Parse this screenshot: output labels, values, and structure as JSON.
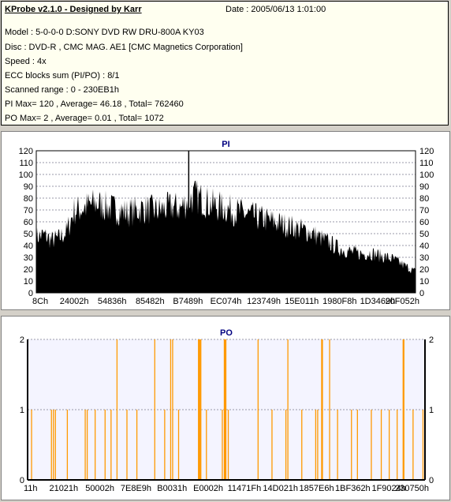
{
  "header": {
    "title": "KProbe v2.1.0 - Designed by Karr",
    "date": "Date : 2005/06/13 1:01:00",
    "lines": [
      "Model : 5-0-0-0 D:SONY    DVD RW DRU-800A  KY03",
      "Disc : DVD-R , CMC MAG. AE1 [CMC Magnetics Corporation]",
      "Speed : 4x",
      "ECC blocks sum (PI/PO) : 8/1",
      "Scanned range : 0 - 230EB1h",
      "PI Max= 120 , Average= 46.18 , Total= 762460",
      "PO Max= 2 , Average= 0.01 , Total= 1072"
    ]
  },
  "chart_data": [
    {
      "type": "area",
      "title": "PI",
      "ylim": [
        0,
        120
      ],
      "yticks": [
        0,
        10,
        20,
        30,
        40,
        50,
        60,
        70,
        80,
        90,
        100,
        110,
        120
      ],
      "xtick_labels": [
        "8Ch",
        "24002h",
        "54836h",
        "85482h",
        "B7489h",
        "EC074h",
        "123749h",
        "15E011h",
        "1980F8h",
        "1D3469h",
        "20F052h"
      ],
      "grid": true,
      "colors": {
        "fill": "#000000",
        "title": "#000080"
      },
      "envelope_points": [
        {
          "x": 0.0,
          "y": 53
        },
        {
          "x": 0.02,
          "y": 55
        },
        {
          "x": 0.04,
          "y": 50
        },
        {
          "x": 0.06,
          "y": 52
        },
        {
          "x": 0.08,
          "y": 58
        },
        {
          "x": 0.1,
          "y": 78
        },
        {
          "x": 0.12,
          "y": 80
        },
        {
          "x": 0.14,
          "y": 83
        },
        {
          "x": 0.16,
          "y": 85
        },
        {
          "x": 0.18,
          "y": 82
        },
        {
          "x": 0.2,
          "y": 80
        },
        {
          "x": 0.22,
          "y": 78
        },
        {
          "x": 0.24,
          "y": 76
        },
        {
          "x": 0.26,
          "y": 78
        },
        {
          "x": 0.28,
          "y": 80
        },
        {
          "x": 0.3,
          "y": 79
        },
        {
          "x": 0.32,
          "y": 78
        },
        {
          "x": 0.34,
          "y": 80
        },
        {
          "x": 0.36,
          "y": 82
        },
        {
          "x": 0.38,
          "y": 80
        },
        {
          "x": 0.4,
          "y": 88
        },
        {
          "x": 0.42,
          "y": 92
        },
        {
          "x": 0.44,
          "y": 88
        },
        {
          "x": 0.46,
          "y": 84
        },
        {
          "x": 0.48,
          "y": 82
        },
        {
          "x": 0.5,
          "y": 80
        },
        {
          "x": 0.52,
          "y": 78
        },
        {
          "x": 0.54,
          "y": 76
        },
        {
          "x": 0.56,
          "y": 74
        },
        {
          "x": 0.58,
          "y": 72
        },
        {
          "x": 0.6,
          "y": 70
        },
        {
          "x": 0.62,
          "y": 68
        },
        {
          "x": 0.64,
          "y": 66
        },
        {
          "x": 0.66,
          "y": 64
        },
        {
          "x": 0.68,
          "y": 62
        },
        {
          "x": 0.7,
          "y": 60
        },
        {
          "x": 0.72,
          "y": 58
        },
        {
          "x": 0.74,
          "y": 54
        },
        {
          "x": 0.76,
          "y": 50
        },
        {
          "x": 0.78,
          "y": 46
        },
        {
          "x": 0.8,
          "y": 42
        },
        {
          "x": 0.82,
          "y": 40
        },
        {
          "x": 0.84,
          "y": 38
        },
        {
          "x": 0.86,
          "y": 37
        },
        {
          "x": 0.88,
          "y": 38
        },
        {
          "x": 0.9,
          "y": 36
        },
        {
          "x": 0.92,
          "y": 34
        },
        {
          "x": 0.94,
          "y": 32
        },
        {
          "x": 0.96,
          "y": 28
        },
        {
          "x": 0.98,
          "y": 24
        },
        {
          "x": 1.0,
          "y": 20
        }
      ],
      "spikes": [
        {
          "x": 0.402,
          "y": 120
        }
      ]
    },
    {
      "type": "bar",
      "title": "PO",
      "ylim": [
        0,
        2
      ],
      "yticks": [
        0,
        1,
        2
      ],
      "xtick_labels": [
        "11h",
        "21021h",
        "50002h",
        "7E8E9h",
        "B0031h",
        "E0002h",
        "11471Fh",
        "14D021h",
        "1857E6h",
        "1BF362h",
        "1F9024h",
        "230750h"
      ],
      "grid": true,
      "colors": {
        "bar": "#ff9900",
        "background": "#f4f4ff",
        "title": "#000080"
      },
      "bars": [
        {
          "x": 0.01,
          "y": 1
        },
        {
          "x": 0.06,
          "y": 1
        },
        {
          "x": 0.065,
          "y": 1
        },
        {
          "x": 0.07,
          "y": 1
        },
        {
          "x": 0.1,
          "y": 1
        },
        {
          "x": 0.145,
          "y": 1
        },
        {
          "x": 0.15,
          "y": 1
        },
        {
          "x": 0.17,
          "y": 1
        },
        {
          "x": 0.195,
          "y": 1
        },
        {
          "x": 0.21,
          "y": 1
        },
        {
          "x": 0.225,
          "y": 2
        },
        {
          "x": 0.25,
          "y": 1
        },
        {
          "x": 0.275,
          "y": 1
        },
        {
          "x": 0.32,
          "y": 2
        },
        {
          "x": 0.345,
          "y": 1
        },
        {
          "x": 0.36,
          "y": 2
        },
        {
          "x": 0.365,
          "y": 2
        },
        {
          "x": 0.38,
          "y": 1
        },
        {
          "x": 0.43,
          "y": 2
        },
        {
          "x": 0.432,
          "y": 2
        },
        {
          "x": 0.434,
          "y": 2
        },
        {
          "x": 0.436,
          "y": 2
        },
        {
          "x": 0.45,
          "y": 1
        },
        {
          "x": 0.49,
          "y": 1
        },
        {
          "x": 0.495,
          "y": 2
        },
        {
          "x": 0.497,
          "y": 2
        },
        {
          "x": 0.499,
          "y": 2
        },
        {
          "x": 0.505,
          "y": 1
        },
        {
          "x": 0.58,
          "y": 2
        },
        {
          "x": 0.615,
          "y": 1
        },
        {
          "x": 0.65,
          "y": 1
        },
        {
          "x": 0.655,
          "y": 2
        },
        {
          "x": 0.69,
          "y": 1
        },
        {
          "x": 0.725,
          "y": 1
        },
        {
          "x": 0.73,
          "y": 1
        },
        {
          "x": 0.74,
          "y": 2
        },
        {
          "x": 0.742,
          "y": 2
        },
        {
          "x": 0.76,
          "y": 2
        },
        {
          "x": 0.78,
          "y": 1
        },
        {
          "x": 0.815,
          "y": 1
        },
        {
          "x": 0.83,
          "y": 1
        },
        {
          "x": 0.865,
          "y": 1
        },
        {
          "x": 0.89,
          "y": 1
        },
        {
          "x": 0.91,
          "y": 1
        },
        {
          "x": 0.93,
          "y": 1
        },
        {
          "x": 0.945,
          "y": 2
        },
        {
          "x": 0.947,
          "y": 2
        },
        {
          "x": 0.97,
          "y": 1
        },
        {
          "x": 0.995,
          "y": 1
        }
      ]
    }
  ]
}
